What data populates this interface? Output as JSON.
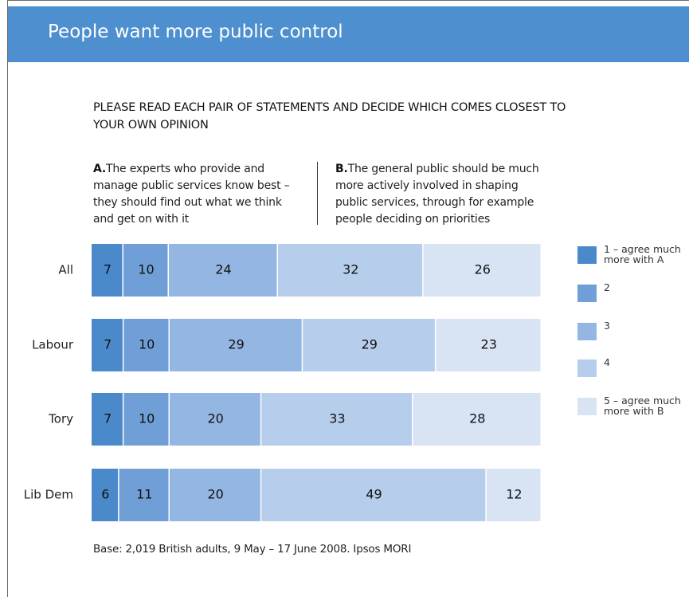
{
  "header": {
    "title": "People want more public control"
  },
  "question": "PLEASE READ EACH PAIR OF STATEMENTS AND DECIDE WHICH COMES CLOSEST TO YOUR OWN OPINION",
  "statement_a": {
    "marker": "A.",
    "text": "The experts who provide and manage public services know best – they should find out what we think and get on with it"
  },
  "statement_b": {
    "marker": "B.",
    "text": "The general public should be much more actively involved in shaping public services, through for example people deciding on priorities"
  },
  "source": "Base: 2,019 British adults, 9 May – 17 June 2008. Ipsos MORI",
  "colors": [
    "#4a8acb",
    "#6f9fd6",
    "#93b6e2",
    "#b7cdec",
    "#d8e3f4"
  ],
  "chart_data": {
    "type": "bar",
    "orientation": "horizontal",
    "stacked": true,
    "normalized": true,
    "categories": [
      "All",
      "Labour",
      "Tory",
      "Lib Dem"
    ],
    "series": [
      {
        "name": "1 – agree much more with A",
        "values": [
          7,
          7,
          7,
          6
        ]
      },
      {
        "name": "2",
        "values": [
          10,
          10,
          10,
          11
        ]
      },
      {
        "name": "3",
        "values": [
          24,
          29,
          20,
          20
        ]
      },
      {
        "name": "4",
        "values": [
          32,
          29,
          33,
          49
        ]
      },
      {
        "name": "5 – agree much more with B",
        "values": [
          26,
          23,
          28,
          12
        ]
      }
    ],
    "legend_position": "right",
    "grid": false
  }
}
